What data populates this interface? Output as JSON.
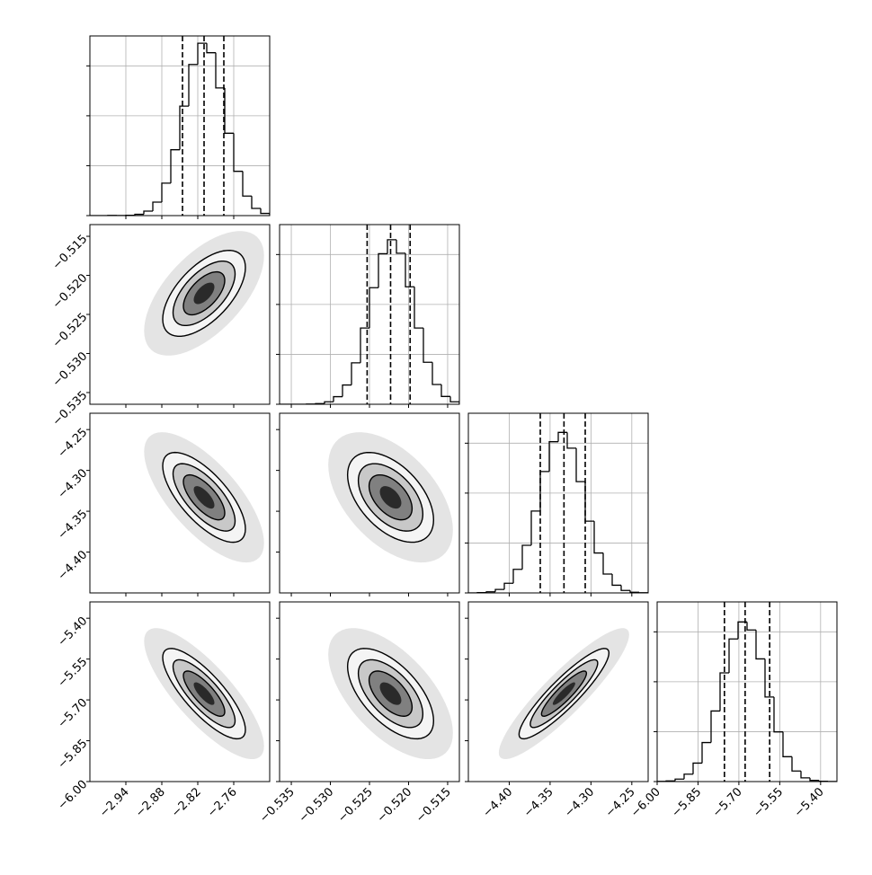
{
  "chart_data": {
    "type": "corner",
    "grid": true,
    "color": "#000000",
    "hist_ylim": [
      0,
      1800
    ],
    "hist_yticks": [
      0,
      500,
      1000,
      1500
    ],
    "levels": [
      0.5,
      1,
      1.5,
      2
    ],
    "params": [
      {
        "lim": [
          -3.0,
          -2.7
        ],
        "ticks": [
          {
            "value": -2.94,
            "label": "−2.94"
          },
          {
            "value": -2.88,
            "label": "−2.88"
          },
          {
            "value": -2.82,
            "label": "−2.82"
          },
          {
            "value": -2.76,
            "label": "−2.76"
          }
        ],
        "bins": [
          -3.0,
          -2.985,
          -2.97,
          -2.955,
          -2.94,
          -2.925,
          -2.91,
          -2.895,
          -2.88,
          -2.865,
          -2.85,
          -2.835,
          -2.82,
          -2.805,
          -2.79,
          -2.775,
          -2.76,
          -2.745,
          -2.73,
          -2.715,
          -2.7
        ],
        "counts": [
          0,
          0,
          2,
          1,
          3,
          13,
          45,
          135,
          325,
          660,
          1097,
          1514,
          1727,
          1632,
          1279,
          825,
          444,
          196,
          72,
          22
        ],
        "quantiles": [
          -2.8455,
          -2.8095,
          -2.7765
        ]
      },
      {
        "lim": [
          -0.5365,
          -0.5135
        ],
        "ticks": [
          {
            "value": -0.535,
            "label": "−0.535"
          },
          {
            "value": -0.53,
            "label": "−0.530"
          },
          {
            "value": -0.525,
            "label": "−0.525"
          },
          {
            "value": -0.52,
            "label": "−0.520"
          },
          {
            "value": -0.515,
            "label": "−0.515"
          }
        ],
        "bins": [
          -0.5365,
          -0.53535,
          -0.5342,
          -0.53305,
          -0.5319,
          -0.53075,
          -0.5296,
          -0.52845,
          -0.5273,
          -0.52615,
          -0.525,
          -0.52385,
          -0.5227,
          -0.52155,
          -0.5204,
          -0.51925,
          -0.5181,
          -0.51695,
          -0.5158,
          -0.51465,
          -0.5135
        ],
        "counts": [
          0,
          0,
          0,
          2,
          7,
          25,
          76,
          193,
          415,
          764,
          1168,
          1508,
          1648,
          1513,
          1177,
          764,
          421,
          198,
          78,
          25
        ],
        "quantiles": [
          -0.5253,
          -0.5223,
          -0.5198
        ]
      },
      {
        "lim": [
          -4.45,
          -4.23
        ],
        "ticks": [
          {
            "value": -4.4,
            "label": "−4.40"
          },
          {
            "value": -4.35,
            "label": "−4.35"
          },
          {
            "value": -4.3,
            "label": "−4.30"
          },
          {
            "value": -4.25,
            "label": "−4.25"
          }
        ],
        "bins": [
          -4.45,
          -4.439,
          -4.428,
          -4.417,
          -4.406,
          -4.395,
          -4.384,
          -4.373,
          -4.362,
          -4.351,
          -4.34,
          -4.329,
          -4.318,
          -4.307,
          -4.296,
          -4.285,
          -4.274,
          -4.263,
          -4.252,
          -4.241,
          -4.23
        ],
        "counts": [
          0,
          3,
          11,
          35,
          97,
          236,
          477,
          820,
          1216,
          1515,
          1608,
          1450,
          1115,
          719,
          400,
          189,
          77,
          25,
          7,
          2
        ],
        "quantiles": [
          -4.362,
          -4.333,
          -4.307
        ]
      },
      {
        "lim": [
          -6.0,
          -5.34
        ],
        "ticks": [
          {
            "value": -6.0,
            "label": "−6.00"
          },
          {
            "value": -5.85,
            "label": "−5.85"
          },
          {
            "value": -5.7,
            "label": "−5.70"
          },
          {
            "value": -5.55,
            "label": "−5.55"
          },
          {
            "value": -5.4,
            "label": "−5.40"
          }
        ],
        "bins": [
          -6.0,
          -5.967,
          -5.934,
          -5.901,
          -5.868,
          -5.835,
          -5.802,
          -5.769,
          -5.736,
          -5.703,
          -5.67,
          -5.637,
          -5.604,
          -5.571,
          -5.538,
          -5.505,
          -5.472,
          -5.439,
          -5.406,
          -5.373,
          -5.34
        ],
        "counts": [
          2,
          7,
          25,
          74,
          185,
          391,
          707,
          1089,
          1429,
          1599,
          1519,
          1229,
          847,
          498,
          249,
          106,
          37,
          12,
          3,
          1
        ],
        "quantiles": [
          -5.753,
          -5.677,
          -5.587
        ]
      }
    ],
    "pairs": [
      {
        "x": 0,
        "y": 1,
        "correlation": 0.6
      },
      {
        "x": 0,
        "y": 2,
        "correlation": -0.7
      },
      {
        "x": 1,
        "y": 2,
        "correlation": -0.5
      },
      {
        "x": 0,
        "y": 3,
        "correlation": -0.8
      },
      {
        "x": 1,
        "y": 3,
        "correlation": -0.6
      },
      {
        "x": 2,
        "y": 3,
        "correlation": 0.9
      }
    ]
  }
}
